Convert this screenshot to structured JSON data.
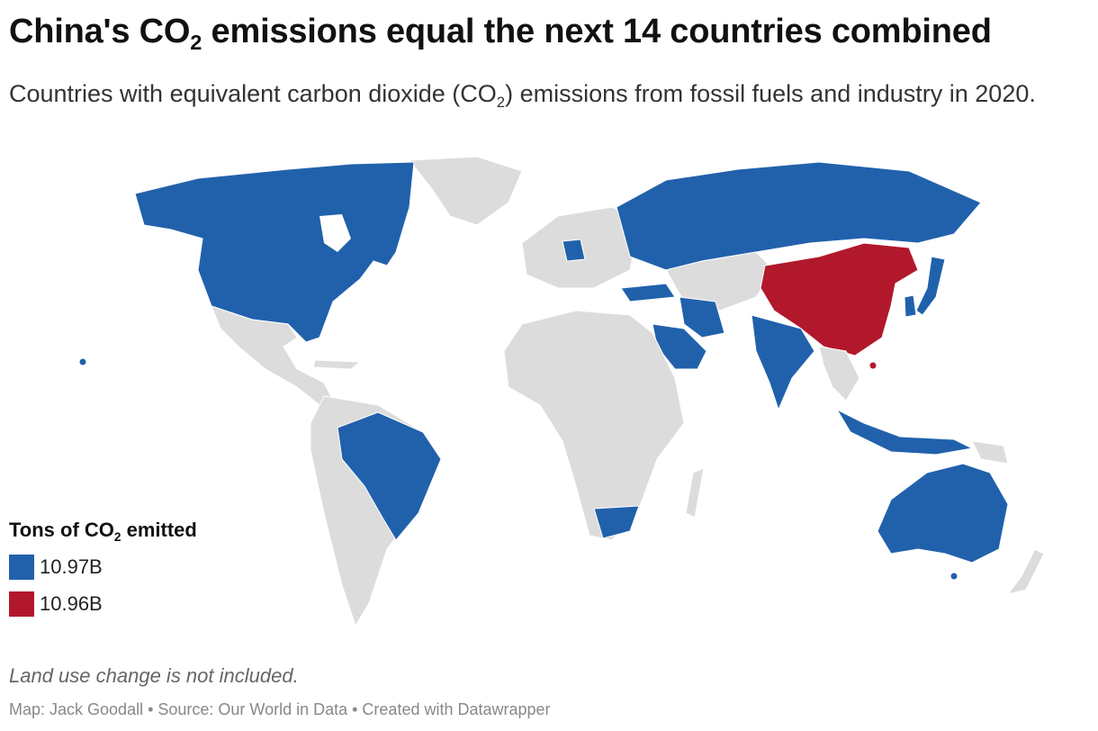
{
  "header": {
    "title_prefix": "China's CO",
    "title_sub": "2",
    "title_suffix": " emissions equal the next 14 countries combined",
    "subtitle_prefix": "Countries with equivalent carbon dioxide (CO",
    "subtitle_sub": "2",
    "subtitle_suffix": ") emissions from fossil fuels and industry in 2020."
  },
  "legend": {
    "title_prefix": "Tons of CO",
    "title_sub": "2",
    "title_suffix": " emitted",
    "items": [
      {
        "label": "10.97B",
        "color": "#2161ac"
      },
      {
        "label": "10.96B",
        "color": "#b2182b"
      }
    ]
  },
  "note": "Land use change is not included.",
  "footer": "Map: Jack Goodall • Source: Our World in Data • Created with Datawrapper",
  "colors": {
    "blue": "#2161ac",
    "red": "#b2182b",
    "land": "#dcdcdc"
  }
}
